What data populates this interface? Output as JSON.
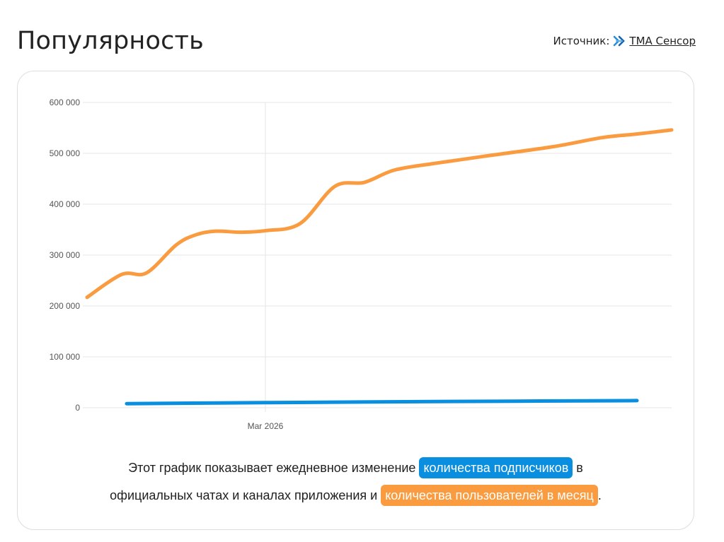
{
  "page": {
    "title": "Популярность",
    "source_label": "Источник:",
    "source_link": "TMA Сенсор",
    "source_icon": "tma-sensor-logo-icon"
  },
  "caption": {
    "part1": "Этот график показывает ежедневное изменение",
    "chip1": "количества подписчиков",
    "part2": "в",
    "part3": "официальных чатах и каналах приложения и",
    "chip2": "количества пользователей в месяц",
    "part4": "."
  },
  "colors": {
    "orange": "#fa9b3f",
    "blue": "#0a8fe0",
    "grid": "#e6e6e6"
  },
  "chart_data": {
    "type": "line",
    "title": "",
    "xlabel": "",
    "ylabel": "",
    "ylim": [
      0,
      600000
    ],
    "y_ticks": [
      "0",
      "100 000",
      "200 000",
      "300 000",
      "400 000",
      "500 000",
      "600 000"
    ],
    "x_tick_label": "Mar 2026",
    "grid": true,
    "series": [
      {
        "color": "#fa9b3f",
        "x": [
          "2026-01-24",
          "2026-01-31",
          "2026-02-05",
          "2026-02-11",
          "2026-02-15",
          "2026-02-19",
          "2026-02-24",
          "2026-03-01",
          "2026-03-08",
          "2026-03-15",
          "2026-03-21",
          "2026-03-27",
          "2026-04-04",
          "2026-04-14",
          "2026-04-28",
          "2026-05-08",
          "2026-05-15",
          "2026-05-22"
        ],
        "values": [
          217000,
          262000,
          265000,
          320000,
          340000,
          347000,
          345000,
          348000,
          362000,
          435000,
          443000,
          467000,
          480000,
          494000,
          513000,
          531000,
          538000,
          546000
        ]
      },
      {
        "color": "#0a8fe0",
        "x": [
          "2026-02-01",
          "2026-03-01",
          "2026-04-01",
          "2026-05-15"
        ],
        "values": [
          8000,
          10000,
          12000,
          14000
        ]
      }
    ]
  }
}
